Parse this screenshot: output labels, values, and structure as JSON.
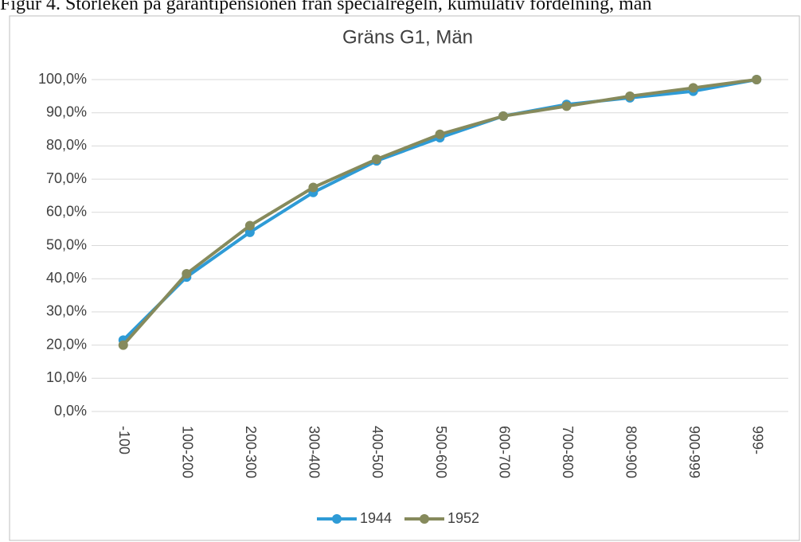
{
  "caption": "Figur 4. Storleken på garantipensionen från specialregeln, kumulativ fördelning, män",
  "chart_data": {
    "type": "line",
    "title": "Gräns G1, Män",
    "categories": [
      "-100",
      "100-200",
      "200-300",
      "300-400",
      "400-500",
      "500-600",
      "600-700",
      "700-800",
      "800-900",
      "900-999",
      "999-"
    ],
    "series": [
      {
        "name": "1944",
        "color": "#2e9bd6",
        "values": [
          21.5,
          40.5,
          54,
          66,
          75.5,
          82.5,
          89,
          92.5,
          94.5,
          96.5,
          100
        ]
      },
      {
        "name": "1952",
        "color": "#868a5c",
        "values": [
          20,
          41.5,
          56,
          67.5,
          76,
          83.5,
          89,
          92,
          95,
          97.5,
          100
        ]
      }
    ],
    "ylim": [
      0,
      100
    ],
    "yticks": [
      {
        "value": 0,
        "label": "0,0%"
      },
      {
        "value": 10,
        "label": "10,0%"
      },
      {
        "value": 20,
        "label": "20,0%"
      },
      {
        "value": 30,
        "label": "30,0%"
      },
      {
        "value": 40,
        "label": "40,0%"
      },
      {
        "value": 50,
        "label": "50,0%"
      },
      {
        "value": 60,
        "label": "60,0%"
      },
      {
        "value": 70,
        "label": "70,0%"
      },
      {
        "value": 80,
        "label": "80,0%"
      },
      {
        "value": 90,
        "label": "90,0%"
      },
      {
        "value": 100,
        "label": "100,0%"
      }
    ],
    "grid": true,
    "legend": "bottom"
  }
}
